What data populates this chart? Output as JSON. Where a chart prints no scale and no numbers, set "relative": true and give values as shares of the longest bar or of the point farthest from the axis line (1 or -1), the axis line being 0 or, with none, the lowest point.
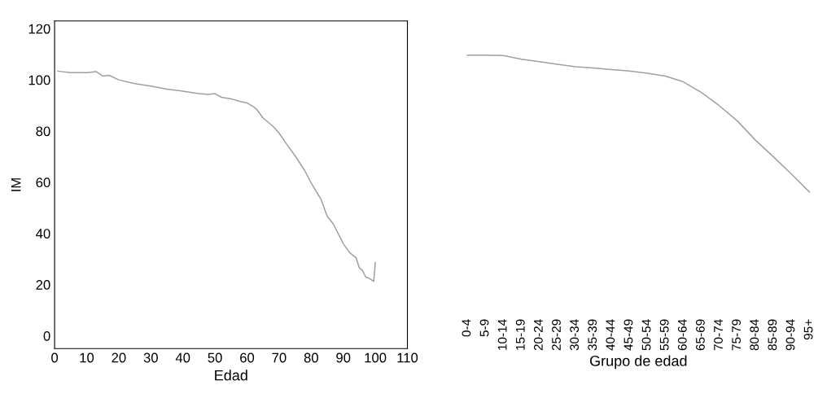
{
  "chart_data": [
    {
      "type": "line",
      "xlabel": "Edad",
      "ylabel": "IM",
      "xlim": [
        0,
        110
      ],
      "xticks": [
        0,
        10,
        20,
        30,
        40,
        50,
        60,
        70,
        80,
        90,
        100,
        110
      ],
      "ylim": [
        -5,
        123
      ],
      "yticks": [
        0,
        20,
        40,
        60,
        80,
        100,
        120
      ],
      "grid": false,
      "legend": false,
      "x": [
        1,
        5,
        10,
        13,
        15,
        17,
        20,
        25,
        30,
        35,
        40,
        45,
        48,
        50,
        52,
        55,
        58,
        60,
        62,
        63,
        65,
        68,
        70,
        72,
        75,
        78,
        80,
        81,
        83,
        85,
        87,
        90,
        92,
        94,
        95,
        96,
        97,
        98,
        99.5,
        100
      ],
      "series": [
        {
          "color": "#a0a0a0",
          "values": [
            103.4,
            102.8,
            102.8,
            103.2,
            101.5,
            101.8,
            100,
            98.5,
            97.6,
            96.4,
            95.6,
            94.6,
            94.3,
            94.6,
            93.2,
            92.6,
            91.5,
            91,
            89.5,
            88.5,
            85.1,
            82,
            79.2,
            75.5,
            70.3,
            64.5,
            59.7,
            57.6,
            53.5,
            46.7,
            43.5,
            36,
            32.5,
            30.5,
            26.6,
            25.5,
            23,
            22.5,
            21.3,
            28.6
          ]
        }
      ]
    },
    {
      "type": "line",
      "xlabel": "Grupo de edad",
      "relative": true,
      "grid": false,
      "legend": false,
      "categories": [
        "0-4",
        "5-9",
        "10-14",
        "15-19",
        "20-24",
        "25-29",
        "30-34",
        "35-39",
        "40-44",
        "45-49",
        "50-54",
        "55-59",
        "60-64",
        "65-69",
        "70-74",
        "75-79",
        "80-84",
        "85-89",
        "90-94",
        "95+"
      ],
      "series": [
        {
          "color": "#a0a0a0",
          "values": [
            1,
            1,
            0.997,
            0.97,
            0.953,
            0.933,
            0.915,
            0.906,
            0.895,
            0.884,
            0.868,
            0.847,
            0.805,
            0.727,
            0.63,
            0.519,
            0.379,
            0.257,
            0.131,
            0
          ]
        }
      ]
    }
  ]
}
